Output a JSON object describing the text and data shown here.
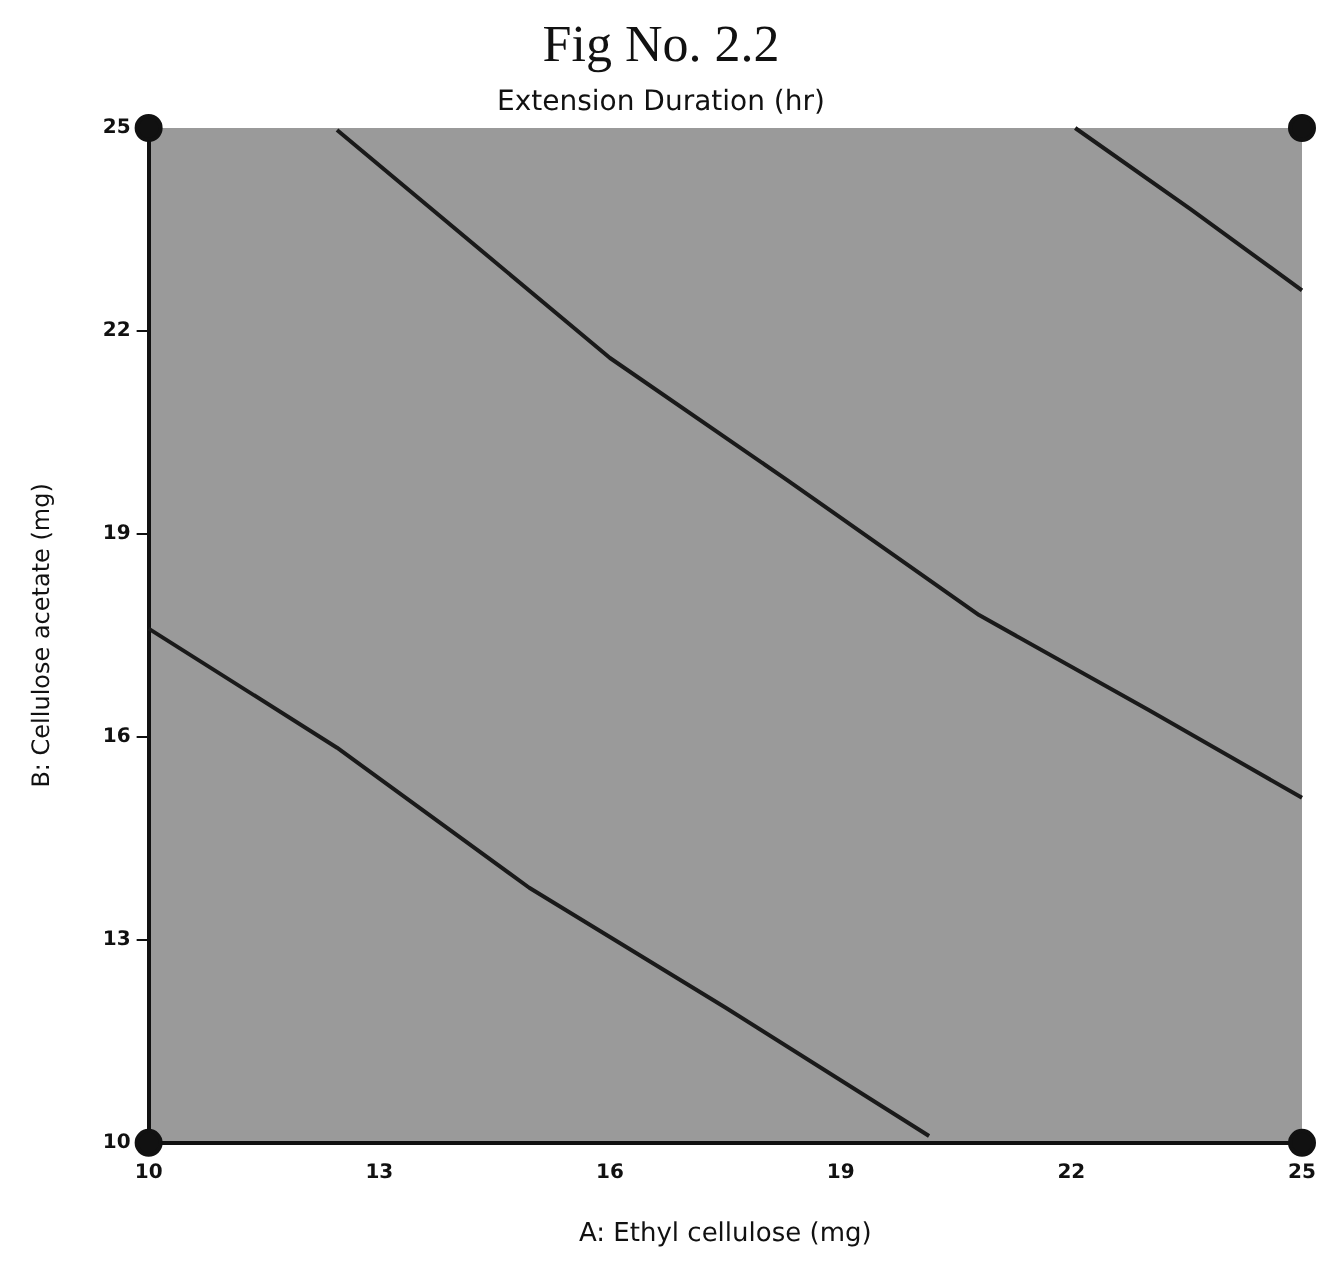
{
  "chart_data": {
    "type": "line",
    "title": "Fig No. 2.2",
    "subtitle": "Extension Duration (hr)",
    "xlabel": "A: Ethyl cellulose (mg)",
    "ylabel": "B: Cellulose acetate (mg)",
    "xlim": [
      10,
      25
    ],
    "xticks": [
      10,
      13,
      16,
      19,
      22,
      25
    ],
    "ylim": [
      10,
      25
    ],
    "yticks": [
      10,
      13,
      16,
      19,
      22,
      25
    ],
    "grid": false,
    "legend": false,
    "marker": "none",
    "line_style": "solid",
    "series": [
      {
        "color": "#1a1a1a",
        "x": [
          10,
          12.45,
          14.95,
          17.5,
          20.15
        ],
        "values": [
          17.6,
          15.84,
          13.77,
          12.0,
          10.1
        ]
      },
      {
        "color": "#1a1a1a",
        "x": [
          12.45,
          16,
          18.3,
          20.8,
          23.0,
          25
        ],
        "values": [
          24.97,
          21.6,
          19.8,
          17.8,
          16.4,
          15.1
        ]
      },
      {
        "color": "#1a1a1a",
        "x": [
          22.05,
          23.55,
          25
        ],
        "values": [
          25,
          23.8,
          22.6
        ]
      },
      {
        "type": "scatter",
        "marker": "circle",
        "color": "#111111",
        "x": [
          10,
          25,
          10,
          25
        ],
        "values": [
          25,
          25,
          10,
          10
        ]
      }
    ]
  }
}
